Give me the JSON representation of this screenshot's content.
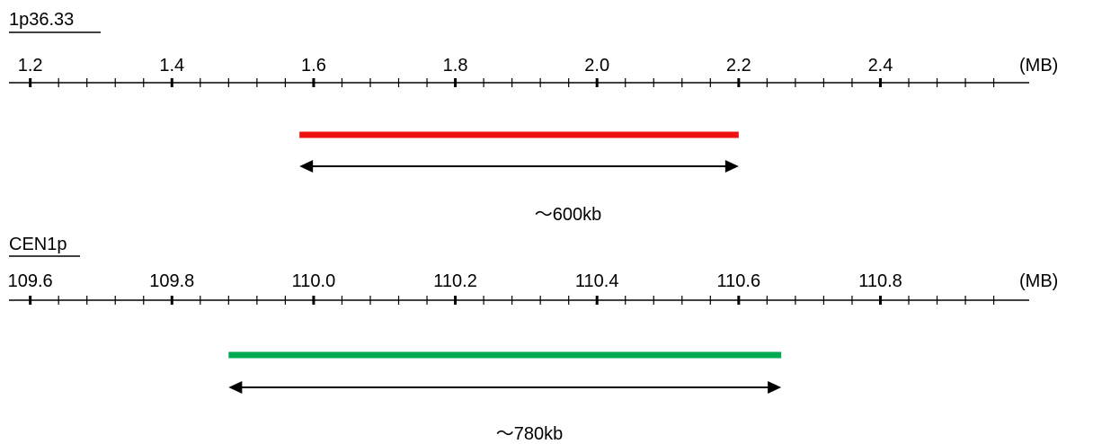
{
  "panels": [
    {
      "name": "1p36.33",
      "unit": "(MB)",
      "tick_labels": [
        "1.2",
        "1.4",
        "1.6",
        "1.8",
        "2.0",
        "2.2",
        "2.4"
      ],
      "major_ticks": [
        1.2,
        1.4,
        1.6,
        1.8,
        2.0,
        2.2,
        2.4
      ],
      "minor_tick_step": 0.04,
      "axis_range": [
        1.17,
        2.61
      ],
      "region": {
        "start": 1.58,
        "end": 2.2,
        "color": "#ee1111"
      },
      "size_label": "～600kb"
    },
    {
      "name": "CEN1p",
      "unit": "(MB)",
      "tick_labels": [
        "109.6",
        "109.8",
        "110.0",
        "110.2",
        "110.4",
        "110.6",
        "110.8"
      ],
      "major_ticks": [
        109.6,
        109.8,
        110.0,
        110.2,
        110.4,
        110.6,
        110.8
      ],
      "minor_tick_step": 0.04,
      "axis_range": [
        109.57,
        111.01
      ],
      "region": {
        "start": 109.88,
        "end": 110.66,
        "color": "#00aa50"
      },
      "size_label": "～780kb"
    }
  ]
}
